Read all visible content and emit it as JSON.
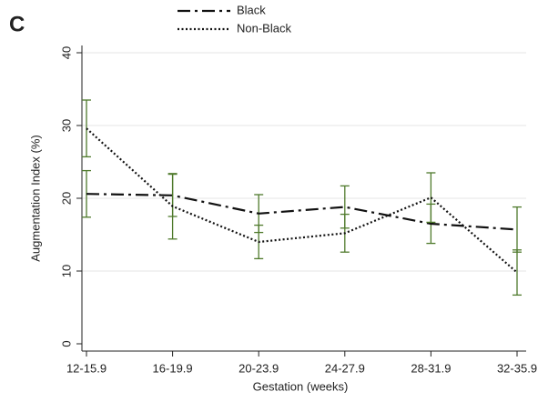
{
  "chart_data": {
    "type": "line",
    "panel_label": "C",
    "xlabel": "Gestation (weeks)",
    "ylabel": "Augmentation Index (%)",
    "categories": [
      "12-15.9",
      "16-19.9",
      "20-23.9",
      "24-27.9",
      "28-31.9",
      "32-35.9"
    ],
    "series": [
      {
        "name": "Black",
        "color": "#111111",
        "linestyle": "dashdot",
        "values": [
          20.6,
          20.4,
          17.9,
          18.8,
          16.5,
          15.7
        ],
        "errors": [
          3.2,
          2.9,
          2.6,
          2.9,
          2.7,
          3.1
        ]
      },
      {
        "name": "Non-Black",
        "color": "#111111",
        "linestyle": "dotted",
        "values": [
          29.6,
          18.9,
          14.0,
          15.2,
          20.1,
          9.8
        ],
        "errors": [
          3.9,
          4.5,
          2.3,
          2.6,
          3.4,
          3.1
        ]
      }
    ],
    "error_color": "#4f7a2c",
    "ylim": [
      -1,
      41
    ],
    "yticks": [
      0,
      10,
      20,
      30,
      40
    ],
    "grid": true
  }
}
